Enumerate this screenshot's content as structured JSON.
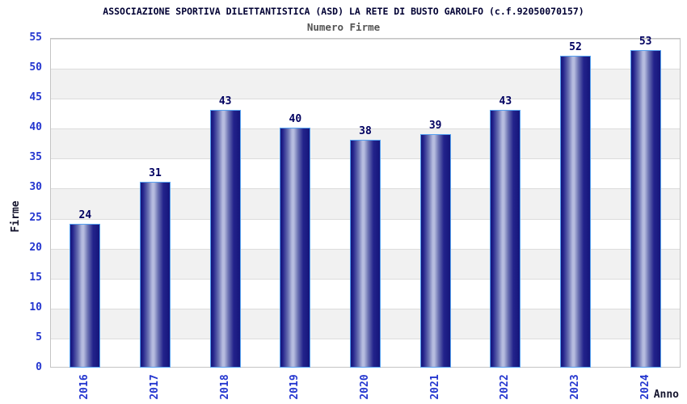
{
  "chart_data": {
    "type": "bar",
    "title": "ASSOCIAZIONE SPORTIVA DILETTANTISTICA (ASD) LA RETE DI BUSTO GAROLFO (c.f.92050070157)",
    "subtitle": "Numero Firme",
    "xlabel": "Anno",
    "ylabel": "Firme",
    "categories": [
      "2016",
      "2017",
      "2018",
      "2019",
      "2020",
      "2021",
      "2022",
      "2023",
      "2024"
    ],
    "values": [
      24,
      31,
      43,
      40,
      38,
      39,
      43,
      52,
      53
    ],
    "ylim": [
      0,
      55
    ],
    "ytick_step": 5,
    "grid": true,
    "band_fill": "alternating-horizontal",
    "legend": "none"
  },
  "colors": {
    "title": "#000033",
    "subtitle": "#545454",
    "axis_title": "#15152e",
    "tick_label": "#2436cf",
    "value_label": "#000060",
    "band": "#f1f1f1",
    "gridline": "#dcdcdc",
    "plot_border": "#c4c4c4",
    "bar_border": "#55a0f0",
    "bar_dark": "#15157a",
    "bar_dark2": "#23238c",
    "bar_mid": "#6b72b2",
    "bar_light": "#b6bcdf"
  }
}
